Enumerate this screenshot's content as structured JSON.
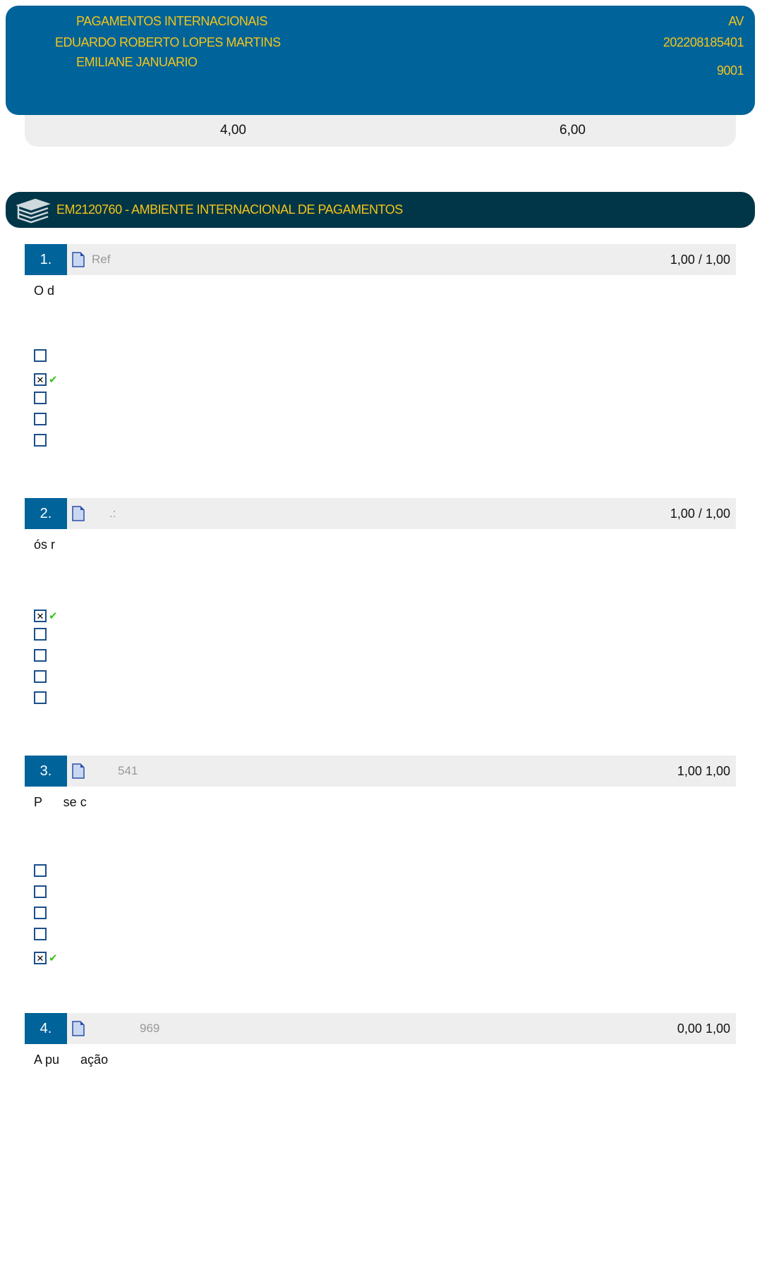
{
  "header": {
    "course_name": "PAGAMENTOS INTERNACIONAIS",
    "student": "EDUARDO ROBERTO LOPES MARTINS",
    "teacher": "EMILIANE JANUARIO",
    "type": "AV",
    "registration": "202208185401",
    "class": "9001"
  },
  "scores": {
    "left": "4,00",
    "right": "6,00"
  },
  "course_bar": {
    "icon": "books-icon",
    "title": "EM2120760 - AMBIENTE INTERNACIONAL DE PAGAMENTOS"
  },
  "colors": {
    "primary": "#00639a",
    "dark": "#003648",
    "accent": "#f5c518",
    "correct": "#3bc21e"
  },
  "questions": [
    {
      "number": "1.",
      "ref": "Ref",
      "score": "1,00",
      "sep": "/",
      "max": "1,00",
      "text": "O d",
      "options": [
        false,
        true,
        false,
        false,
        false
      ]
    },
    {
      "number": "2.",
      "ref": ".:",
      "score": "1,00",
      "sep": "/",
      "max": "1,00",
      "text": "ós r",
      "options": [
        true,
        false,
        false,
        false,
        false
      ]
    },
    {
      "number": "3.",
      "ref": "541",
      "score": "1,00",
      "sep": "",
      "max": "1,00",
      "text": "P      se c",
      "options": [
        false,
        false,
        false,
        false,
        true
      ]
    },
    {
      "number": "4.",
      "ref": "969",
      "score": "0,00",
      "sep": "",
      "max": "1,00",
      "text": "A pu      ação",
      "options": []
    }
  ]
}
